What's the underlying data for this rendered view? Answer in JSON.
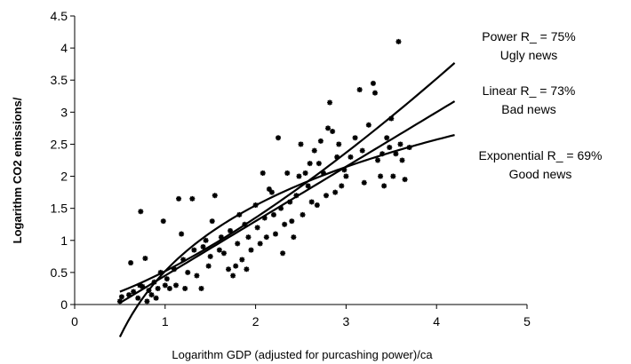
{
  "chart_data": {
    "type": "scatter",
    "xlabel": "Logarithm GDP (adjusted for purcashing power)/ca",
    "ylabel": "Logarithm CO2 emissions/",
    "xlim": [
      0,
      5
    ],
    "ylim": [
      0,
      4.5
    ],
    "x_ticks": [
      "0",
      "1",
      "2",
      "3",
      "4",
      "5"
    ],
    "y_ticks": [
      "0",
      "0.5",
      "1",
      "1.5",
      "2",
      "2.5",
      "3",
      "3.5",
      "4",
      "4.5"
    ],
    "grid": false,
    "points": [
      [
        0.5,
        0.05
      ],
      [
        0.52,
        0.12
      ],
      [
        0.6,
        0.15
      ],
      [
        0.62,
        0.65
      ],
      [
        0.65,
        0.2
      ],
      [
        0.7,
        0.1
      ],
      [
        0.72,
        0.3
      ],
      [
        0.73,
        1.45
      ],
      [
        0.75,
        0.28
      ],
      [
        0.78,
        0.72
      ],
      [
        0.8,
        0.05
      ],
      [
        0.82,
        0.22
      ],
      [
        0.85,
        0.15
      ],
      [
        0.88,
        0.35
      ],
      [
        0.9,
        0.1
      ],
      [
        0.92,
        0.25
      ],
      [
        0.95,
        0.5
      ],
      [
        0.98,
        1.3
      ],
      [
        1.0,
        0.3
      ],
      [
        1.02,
        0.4
      ],
      [
        1.05,
        0.25
      ],
      [
        1.1,
        0.55
      ],
      [
        1.12,
        0.3
      ],
      [
        1.15,
        1.65
      ],
      [
        1.18,
        1.1
      ],
      [
        1.2,
        0.7
      ],
      [
        1.22,
        0.25
      ],
      [
        1.25,
        0.5
      ],
      [
        1.3,
        1.65
      ],
      [
        1.32,
        0.85
      ],
      [
        1.35,
        0.45
      ],
      [
        1.4,
        0.25
      ],
      [
        1.42,
        0.9
      ],
      [
        1.45,
        1.0
      ],
      [
        1.48,
        0.6
      ],
      [
        1.5,
        0.75
      ],
      [
        1.52,
        1.3
      ],
      [
        1.55,
        1.7
      ],
      [
        1.6,
        0.85
      ],
      [
        1.62,
        1.05
      ],
      [
        1.65,
        0.8
      ],
      [
        1.7,
        0.55
      ],
      [
        1.72,
        1.15
      ],
      [
        1.75,
        0.45
      ],
      [
        1.78,
        0.6
      ],
      [
        1.8,
        0.95
      ],
      [
        1.82,
        1.4
      ],
      [
        1.85,
        0.7
      ],
      [
        1.88,
        1.25
      ],
      [
        1.9,
        0.55
      ],
      [
        1.92,
        1.05
      ],
      [
        1.95,
        0.85
      ],
      [
        2.0,
        1.55
      ],
      [
        2.02,
        1.2
      ],
      [
        2.05,
        0.95
      ],
      [
        2.08,
        2.05
      ],
      [
        2.1,
        1.35
      ],
      [
        2.12,
        1.05
      ],
      [
        2.15,
        1.8
      ],
      [
        2.18,
        1.75
      ],
      [
        2.2,
        1.4
      ],
      [
        2.22,
        1.1
      ],
      [
        2.25,
        2.6
      ],
      [
        2.28,
        1.5
      ],
      [
        2.3,
        0.8
      ],
      [
        2.32,
        1.25
      ],
      [
        2.35,
        2.05
      ],
      [
        2.38,
        1.6
      ],
      [
        2.4,
        1.3
      ],
      [
        2.42,
        1.05
      ],
      [
        2.45,
        1.7
      ],
      [
        2.48,
        2.0
      ],
      [
        2.5,
        2.5
      ],
      [
        2.52,
        1.4
      ],
      [
        2.55,
        2.05
      ],
      [
        2.58,
        1.85
      ],
      [
        2.6,
        2.2
      ],
      [
        2.62,
        1.6
      ],
      [
        2.65,
        2.4
      ],
      [
        2.68,
        1.55
      ],
      [
        2.7,
        2.2
      ],
      [
        2.72,
        2.55
      ],
      [
        2.75,
        2.05
      ],
      [
        2.78,
        1.7
      ],
      [
        2.8,
        2.75
      ],
      [
        2.82,
        3.15
      ],
      [
        2.85,
        2.7
      ],
      [
        2.88,
        1.75
      ],
      [
        2.9,
        2.3
      ],
      [
        2.92,
        2.5
      ],
      [
        2.95,
        1.85
      ],
      [
        2.98,
        2.1
      ],
      [
        3.0,
        2.0
      ],
      [
        3.05,
        2.3
      ],
      [
        3.1,
        2.6
      ],
      [
        3.15,
        3.35
      ],
      [
        3.18,
        2.4
      ],
      [
        3.2,
        1.9
      ],
      [
        3.25,
        2.8
      ],
      [
        3.3,
        3.45
      ],
      [
        3.32,
        3.3
      ],
      [
        3.35,
        2.25
      ],
      [
        3.38,
        2.0
      ],
      [
        3.4,
        2.35
      ],
      [
        3.42,
        1.85
      ],
      [
        3.45,
        2.6
      ],
      [
        3.48,
        2.45
      ],
      [
        3.5,
        2.9
      ],
      [
        3.52,
        2.0
      ],
      [
        3.55,
        2.35
      ],
      [
        3.58,
        4.1
      ],
      [
        3.6,
        2.5
      ],
      [
        3.62,
        2.25
      ],
      [
        3.65,
        1.95
      ],
      [
        3.7,
        2.45
      ]
    ],
    "series": [
      {
        "name": "Power",
        "type": "power",
        "a": 0.52,
        "b": 1.38
      },
      {
        "name": "Linear",
        "type": "linear",
        "slope": 0.85,
        "intercept": -0.4
      },
      {
        "name": "Exponential",
        "type": "log",
        "a": 0.52,
        "b": 1.48
      }
    ],
    "trend_x_range": [
      0.5,
      4.2
    ],
    "annotations": [
      {
        "line1": "Power R_ = 75%",
        "line2": "Ugly news"
      },
      {
        "line1": "Linear R_ = 73%",
        "line2": "Bad news"
      },
      {
        "line1": "Exponential R_ =  69%",
        "line2": "Good news"
      }
    ]
  }
}
